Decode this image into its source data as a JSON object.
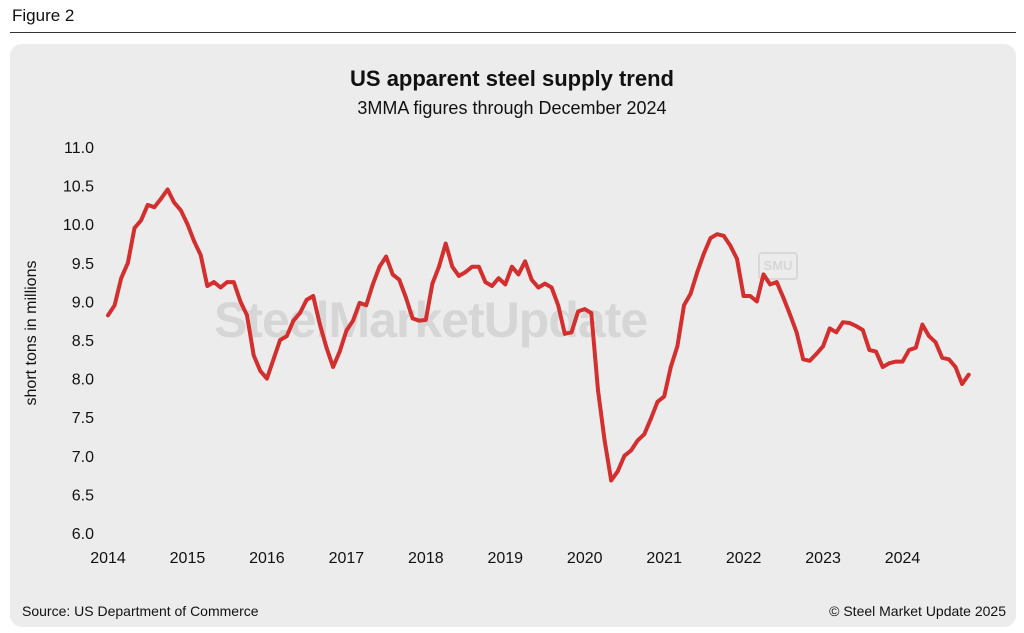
{
  "figure_label": "Figure 2",
  "source": "Source: US Department of Commerce",
  "copyright": "© Steel Market Update 2025",
  "watermark": {
    "text": "SteelMarketUpdate",
    "badge": "SMU"
  },
  "chart_data": {
    "type": "line",
    "title": "US apparent steel supply trend",
    "subtitle": "3MMA figures through December 2024",
    "ylabel": "short tons in millions",
    "xlabel": "",
    "ylim": [
      6.0,
      11.0
    ],
    "xlim": [
      2014.0,
      2025.0
    ],
    "yticks": [
      6.0,
      6.5,
      7.0,
      7.5,
      8.0,
      8.5,
      9.0,
      9.5,
      10.0,
      10.5,
      11.0
    ],
    "ytick_labels": [
      "6.0",
      "6.5",
      "7.0",
      "7.5",
      "8.0",
      "8.5",
      "9.0",
      "9.5",
      "10.0",
      "10.5",
      "11.0"
    ],
    "xticks": [
      2014,
      2015,
      2016,
      2017,
      2018,
      2019,
      2020,
      2021,
      2022,
      2023,
      2024
    ],
    "xtick_labels": [
      "2014",
      "2015",
      "2016",
      "2017",
      "2018",
      "2019",
      "2020",
      "2021",
      "2022",
      "2023",
      "2024"
    ],
    "grid": false,
    "line_color": "#d32f2f",
    "series": [
      {
        "name": "US apparent steel supply (3MMA)",
        "x_start": 2014.0,
        "x_step": 0.08333,
        "values": [
          8.82,
          8.95,
          9.3,
          9.5,
          9.95,
          10.05,
          10.25,
          10.22,
          10.33,
          10.45,
          10.28,
          10.18,
          10.0,
          9.78,
          9.6,
          9.2,
          9.25,
          9.18,
          9.25,
          9.25,
          9.0,
          8.82,
          8.3,
          8.1,
          8.0,
          8.25,
          8.5,
          8.55,
          8.75,
          8.85,
          9.02,
          9.07,
          8.7,
          8.4,
          8.15,
          8.35,
          8.62,
          8.75,
          8.98,
          8.95,
          9.22,
          9.45,
          9.58,
          9.35,
          9.28,
          9.05,
          8.78,
          8.75,
          8.76,
          9.23,
          9.45,
          9.75,
          9.45,
          9.33,
          9.38,
          9.45,
          9.45,
          9.25,
          9.2,
          9.3,
          9.22,
          9.45,
          9.35,
          9.52,
          9.28,
          9.18,
          9.23,
          9.18,
          8.95,
          8.58,
          8.6,
          8.87,
          8.9,
          8.85,
          7.85,
          7.2,
          6.68,
          6.8,
          7.0,
          7.07,
          7.2,
          7.28,
          7.48,
          7.7,
          7.77,
          8.15,
          8.42,
          8.95,
          9.1,
          9.38,
          9.62,
          9.82,
          9.87,
          9.85,
          9.72,
          9.55,
          9.07,
          9.07,
          9.0,
          9.35,
          9.22,
          9.25,
          9.05,
          8.83,
          8.6,
          8.25,
          8.23,
          8.32,
          8.42,
          8.65,
          8.6,
          8.73,
          8.72,
          8.68,
          8.63,
          8.37,
          8.35,
          8.15,
          8.2,
          8.22,
          8.22,
          8.37,
          8.4,
          8.7,
          8.55,
          8.47,
          8.27,
          8.25,
          8.15,
          7.93,
          8.05
        ]
      }
    ]
  }
}
